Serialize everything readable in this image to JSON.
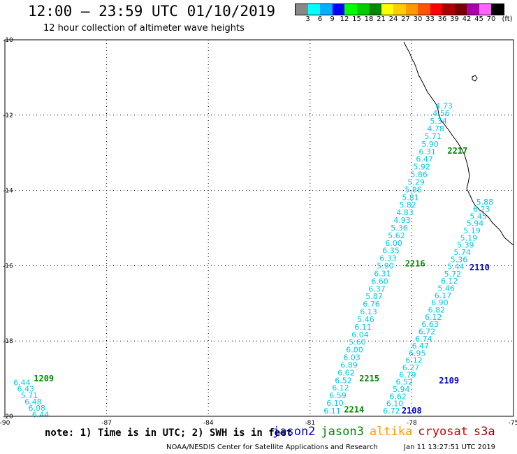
{
  "header": {
    "title": "12:00 – 23:59 UTC 01/10/2019",
    "subtitle": "12 hour collection of altimeter wave heights"
  },
  "colorbar": {
    "unit": "(ft)",
    "colors": [
      "#888888",
      "#00ffff",
      "#00b0ff",
      "#0000ff",
      "#00ff00",
      "#00cc00",
      "#008800",
      "#ffff00",
      "#ffcc00",
      "#ff9900",
      "#ff5500",
      "#ff0000",
      "#aa0000",
      "#770000",
      "#aa00aa",
      "#ff66ff",
      "#000000"
    ],
    "labels": [
      "3",
      "6",
      "9",
      "12",
      "15",
      "18",
      "21",
      "24",
      "27",
      "30",
      "33",
      "36",
      "39",
      "42",
      "45",
      "70"
    ]
  },
  "map": {
    "lon_range": [
      -90,
      -75
    ],
    "lat_range": [
      -20,
      -10
    ],
    "lat_ticks": [
      "-10",
      "-12",
      "-14",
      "-16",
      "-18",
      "-20"
    ],
    "lon_ticks": [
      "-90",
      "-87",
      "-84",
      "-81",
      "-78",
      "-75"
    ],
    "coastline_color": "#000000",
    "grid": true
  },
  "tracks": [
    {
      "start": [
        -89.75,
        -19.1
      ],
      "end": [
        -89.2,
        -19.95
      ],
      "values": [
        "6.44",
        "6.43",
        "5.71",
        "6.48",
        "6.08",
        "6.44"
      ],
      "color": "#00c8e8"
    },
    {
      "start": [
        -77.3,
        -11.75
      ],
      "end": [
        -80.6,
        -19.85
      ],
      "values": [
        "4.73",
        "4.56",
        "5.34",
        "4.78",
        "5.71",
        "5.90",
        "6.31",
        "6.47",
        "5.92",
        "5.86",
        "5.29",
        "5.86",
        "5.81",
        "5.82",
        "4.83",
        "4.93",
        "5.36",
        "5.62",
        "6.00",
        "6.35",
        "6.33",
        "5.90",
        "6.31",
        "6.60",
        "6.37",
        "5.87",
        "6.76",
        "6.13",
        "5.46",
        "6.11",
        "6.04",
        "5.60",
        "6.00",
        "6.03",
        "6.89",
        "6.62",
        "6.52",
        "6.12",
        "6.59",
        "6.10",
        "6.11"
      ],
      "color": "#00c8e8"
    },
    {
      "start": [
        -76.1,
        -14.3
      ],
      "end": [
        -78.85,
        -19.85
      ],
      "values": [
        "5.88",
        "6.23",
        "5.45",
        "5.94",
        "5.19",
        "5.19",
        "5.39",
        "5.74",
        "5.36",
        "5.44",
        "5.72",
        "6.12",
        "5.46",
        "6.17",
        "6.90",
        "6.82",
        "6.12",
        "6.63",
        "6.72",
        "6.74",
        "6.47",
        "6.95",
        "6.12",
        "6.27",
        "6.79",
        "6.52",
        "5.94",
        "6.62",
        "6.10",
        "6.72"
      ],
      "color": "#00c8e8"
    }
  ],
  "pass_labels": [
    {
      "text": "1209",
      "lon": -89.15,
      "lat": -19.0,
      "color": "#008800"
    },
    {
      "text": "2217",
      "lon": -76.95,
      "lat": -12.95,
      "color": "#008800"
    },
    {
      "text": "2216",
      "lon": -78.2,
      "lat": -15.95,
      "color": "#008800"
    },
    {
      "text": "2110",
      "lon": -76.3,
      "lat": -16.05,
      "color": "#0000cc"
    },
    {
      "text": "2215",
      "lon": -79.55,
      "lat": -19.0,
      "color": "#008800"
    },
    {
      "text": "2109",
      "lon": -77.2,
      "lat": -19.05,
      "color": "#0000cc"
    },
    {
      "text": "2214",
      "lon": -80.0,
      "lat": -19.82,
      "color": "#008800"
    },
    {
      "text": "2108",
      "lon": -78.3,
      "lat": -19.85,
      "color": "#0000cc"
    }
  ],
  "footer": {
    "note": "note: 1) Time is in UTC; 2) SWH is in feet",
    "satellites": [
      {
        "name": "jason2",
        "color": "#0000cc"
      },
      {
        "name": "jason3",
        "color": "#008800"
      },
      {
        "name": "altika",
        "color": "#ff9900"
      },
      {
        "name": "cryosat",
        "color": "#cc0000"
      },
      {
        "name": "s3a",
        "color": "#990000"
      }
    ],
    "credit": "NOAA/NESDIS Center for Satellite Applications and Research",
    "timestamp": "Jan 11 13:27:51 UTC 2019"
  }
}
